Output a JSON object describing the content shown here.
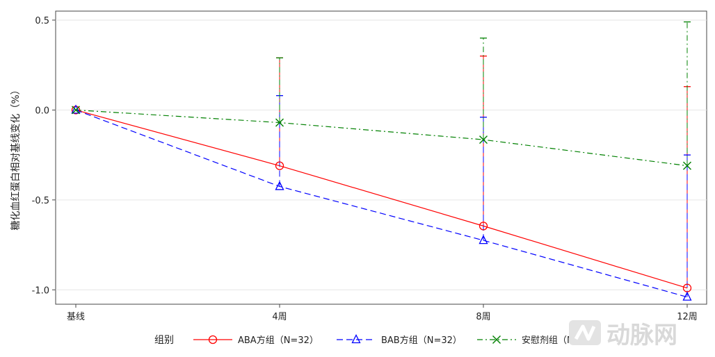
{
  "chart_data": {
    "type": "line",
    "title": "",
    "ylabel": "糖化血红蛋白相对基线变化（%）",
    "xlabel": "",
    "categories": [
      "基线",
      "4周",
      "8周",
      "12周"
    ],
    "x_positions_weeks": [
      0,
      4,
      8,
      12
    ],
    "ylim": [
      -1.08,
      0.55
    ],
    "yticks": [
      0.5,
      0.0,
      -0.5,
      -1.0
    ],
    "ytick_labels": [
      "0.5",
      "0.0",
      "-0.5",
      "-1.0"
    ],
    "grid": "horizontal",
    "legend": {
      "title": "组别",
      "placement": "bottom"
    },
    "series": [
      {
        "name": "ABA方组（N=32）",
        "color": "#ff0000",
        "line": "solid",
        "marker": "circle",
        "values": [
          0.0,
          -0.31,
          -0.645,
          -0.99
        ],
        "upper": [
          0.0,
          0.29,
          0.3,
          0.13
        ]
      },
      {
        "name": "BAB方组（N=32）",
        "color": "#0000ff",
        "line": "dashed",
        "marker": "triangle",
        "values": [
          0.0,
          -0.425,
          -0.725,
          -1.04
        ],
        "upper": [
          0.0,
          0.08,
          -0.04,
          -0.25
        ]
      },
      {
        "name": "安慰剂组（N=31）",
        "color": "#008000",
        "line": "dashdot",
        "marker": "x",
        "values": [
          0.0,
          -0.07,
          -0.165,
          -0.31
        ],
        "upper": [
          0.0,
          0.29,
          0.4,
          0.49
        ]
      }
    ]
  },
  "watermark": {
    "logo_icon": "pulse-logo-icon",
    "text": "动脉网"
  }
}
